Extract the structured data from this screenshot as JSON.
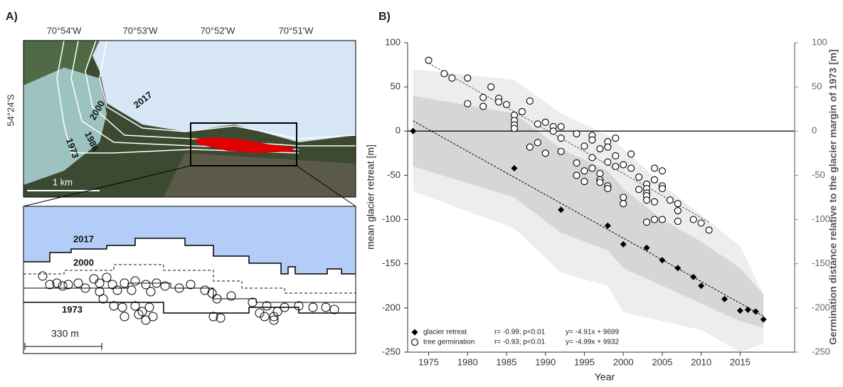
{
  "panel_a": {
    "label": "A)",
    "longitudes": [
      "70°54'W",
      "70°53'W",
      "70°52'W",
      "70°51'W"
    ],
    "latitude": "54°24'S",
    "map_years": [
      "2017",
      "2000",
      "1986",
      "1973"
    ],
    "scale": "1 km",
    "inset_years": [
      "2017",
      "2000",
      "1973"
    ],
    "inset_scale": "330 m"
  },
  "chart_data": {
    "type": "scatter",
    "panel_label": "B)",
    "x_label": "Year",
    "y_label": "mean glacier retreat [m]",
    "y2_label": "Germination distance relative to the glacier margin of 1973 [m]",
    "xlim": [
      1972.3,
      2022
    ],
    "xticks": [
      1975,
      1980,
      1985,
      1990,
      1995,
      2000,
      2005,
      2010,
      2015
    ],
    "ylim": [
      -250,
      100
    ],
    "yticks": [
      -250,
      -200,
      -150,
      -100,
      -50,
      0,
      50,
      100
    ],
    "y2lim": [
      -250,
      100
    ],
    "y2ticks": [
      -250,
      -200,
      -150,
      -100,
      -50,
      0,
      50,
      100
    ],
    "zero_line": true,
    "legend": "lower left",
    "bands": [
      {
        "color": "#ededed",
        "x": [
          1973,
          1986,
          1992,
          1998,
          2000,
          2005,
          2010,
          2015,
          2018
        ],
        "upper": [
          70,
          58,
          20,
          -5,
          -20,
          -60,
          -95,
          -130,
          -185
        ],
        "lower": [
          -68,
          -110,
          -160,
          -175,
          -205,
          -215,
          -225,
          -250,
          -240
        ]
      },
      {
        "color": "#d6d6d6",
        "x": [
          1973,
          1986,
          1992,
          1998,
          2000,
          2005,
          2010,
          2015,
          2018
        ],
        "upper": [
          40,
          20,
          -20,
          -45,
          -65,
          -100,
          -125,
          -155,
          -185
        ],
        "lower": [
          -40,
          -75,
          -115,
          -135,
          -155,
          -175,
          -195,
          -215,
          -222
        ]
      }
    ],
    "series": [
      {
        "name": "glacier retreat",
        "marker": "diamond",
        "color": "#000000",
        "stats": "r= -0.99; p<0.01",
        "equation": "y= -4.91x + 9699",
        "fit": {
          "slope": -4.91,
          "intercept": 9699
        },
        "x": [
          1973,
          1986,
          1992,
          1998,
          2000,
          2003,
          2005,
          2007,
          2009,
          2010,
          2013,
          2015,
          2016,
          2017,
          2018
        ],
        "values": [
          0,
          -42,
          -89,
          -107,
          -128,
          -132,
          -146,
          -155,
          -165,
          -175,
          -190,
          -203,
          -202,
          -204,
          -213
        ]
      },
      {
        "name": "tree germination",
        "marker": "circle",
        "color": "#000000",
        "axis": "y2",
        "stats": "r= -0.93; p<0.01",
        "equation": "y= -4.99x + 9932",
        "fit": {
          "slope": -4.99,
          "intercept": 9932
        },
        "x": [
          1975,
          1977,
          1978,
          1980,
          1980,
          1982,
          1982,
          1983,
          1984,
          1984,
          1985,
          1986,
          1986,
          1986,
          1986,
          1987,
          1988,
          1988,
          1989,
          1989,
          1990,
          1990,
          1991,
          1991,
          1992,
          1992,
          1992,
          1994,
          1994,
          1994,
          1995,
          1995,
          1995,
          1996,
          1996,
          1996,
          1996,
          1997,
          1997,
          1997,
          1997,
          1998,
          1998,
          1998,
          1998,
          1998,
          1999,
          1999,
          1999,
          2000,
          2000,
          2000,
          2001,
          2001,
          2002,
          2002,
          2003,
          2003,
          2003,
          2003,
          2003,
          2003,
          2004,
          2004,
          2004,
          2004,
          2005,
          2005,
          2005,
          2005,
          2006,
          2007,
          2007,
          2007,
          2009,
          2010,
          2011
        ],
        "values": [
          80,
          65,
          60,
          60,
          31,
          38,
          28,
          50,
          37,
          33,
          30,
          18,
          12,
          7,
          3,
          22,
          34,
          -18,
          8,
          -13,
          10,
          -25,
          5,
          0,
          5,
          -8,
          -23,
          -3,
          -36,
          -50,
          -45,
          -57,
          -17,
          -5,
          -10,
          -30,
          -42,
          -20,
          -48,
          -55,
          -58,
          -12,
          -18,
          -35,
          -62,
          -65,
          -8,
          -28,
          -40,
          -38,
          -75,
          -82,
          -26,
          -42,
          -52,
          -66,
          -60,
          -65,
          -70,
          -73,
          -78,
          -103,
          -42,
          -55,
          -80,
          -100,
          -45,
          -62,
          -65,
          -100,
          -78,
          -82,
          -90,
          -102,
          -100,
          -104,
          -112
        ]
      }
    ]
  }
}
